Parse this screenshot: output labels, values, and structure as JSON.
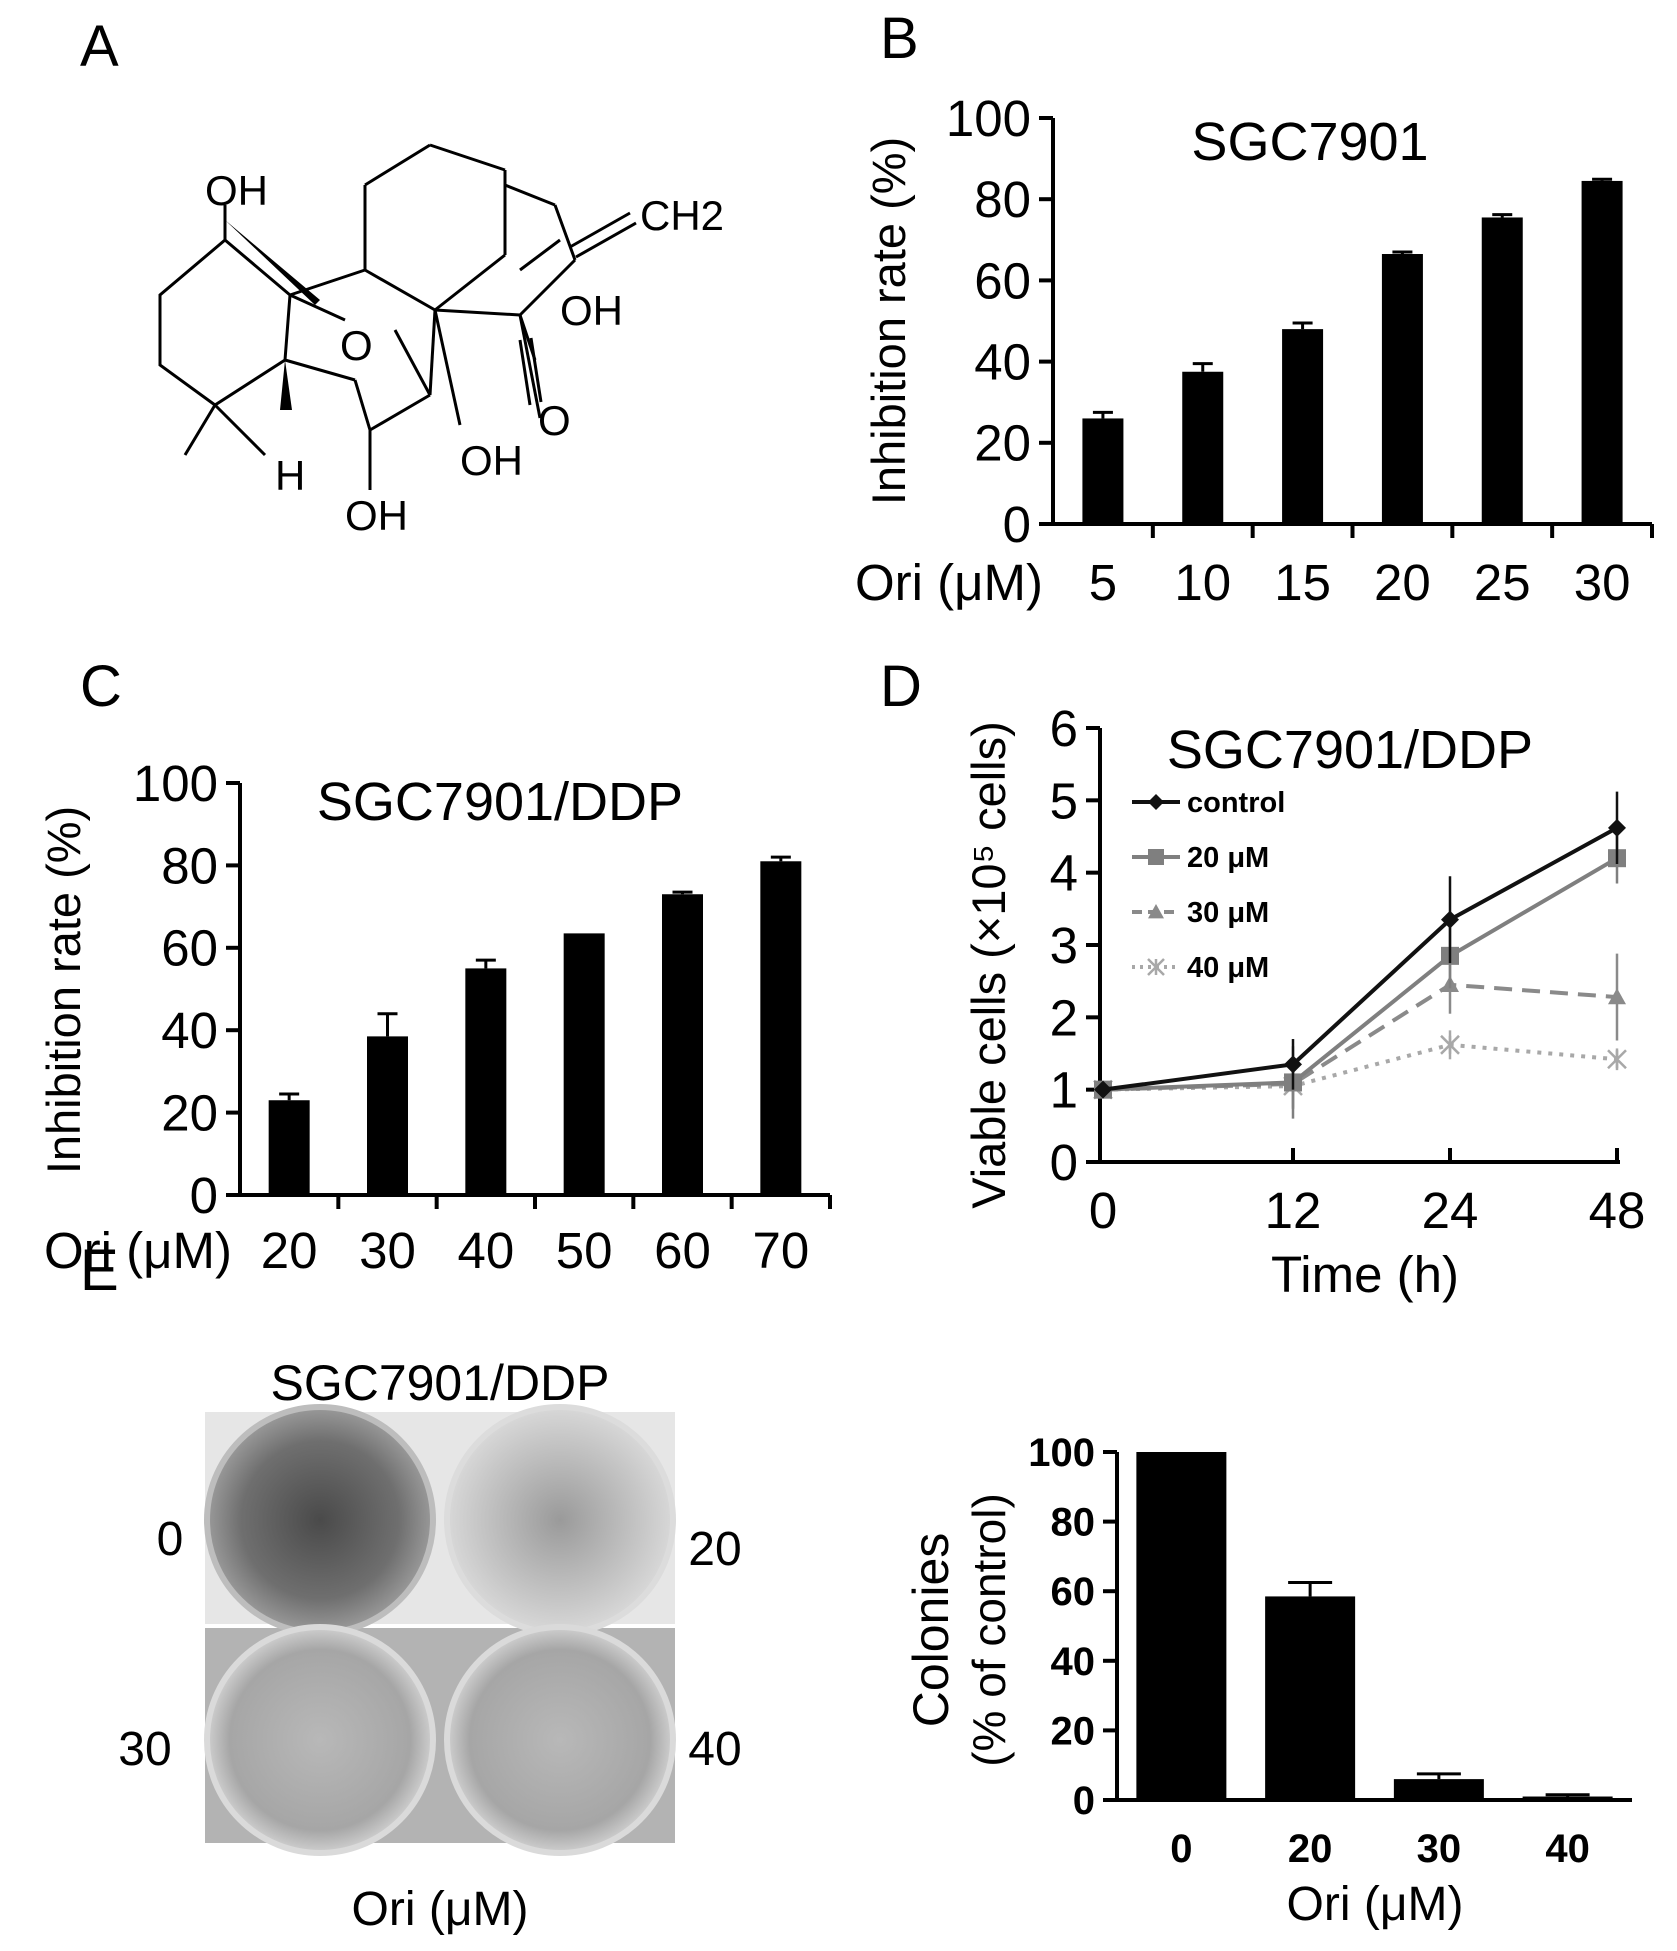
{
  "panels": {
    "a": {
      "label": "A"
    },
    "b": {
      "label": "B"
    },
    "c": {
      "label": "C"
    },
    "d": {
      "label": "D"
    },
    "e": {
      "label": "E"
    }
  },
  "structure": {
    "labels": [
      "OH",
      "CH2",
      "OH",
      "O",
      "O",
      "H",
      "OH",
      "OH"
    ]
  },
  "plate": {
    "title": "SGC7901/DDP",
    "wells": [
      "0",
      "20",
      "30",
      "40"
    ],
    "xlabel": "Ori (μM)"
  },
  "chart_data": [
    {
      "type": "bar",
      "title": "SGC7901",
      "ylabel": "Inhibition rate (%)",
      "xlabel": "Ori (μM)",
      "categories": [
        "5",
        "10",
        "15",
        "20",
        "25",
        "30"
      ],
      "values": [
        26,
        37.5,
        48,
        66.5,
        75.5,
        84.5
      ],
      "errors": [
        1.5,
        2,
        1.5,
        0.5,
        0.7,
        0.4
      ],
      "ylim": [
        0,
        100
      ],
      "yticks": [
        "0",
        "20",
        "40",
        "60",
        "80",
        "100"
      ],
      "bar_color": "#000000"
    },
    {
      "type": "bar",
      "title": "SGC7901/DDP",
      "ylabel": "Inhibition rate (%)",
      "xlabel": "Ori (μM)",
      "categories": [
        "20",
        "30",
        "40",
        "50",
        "60",
        "70"
      ],
      "values": [
        23,
        38.5,
        55,
        63.5,
        73,
        81
      ],
      "errors": [
        1.5,
        5.5,
        2,
        0,
        0.5,
        1
      ],
      "ylim": [
        0,
        100
      ],
      "yticks": [
        "0",
        "20",
        "40",
        "60",
        "80",
        "100"
      ],
      "bar_color": "#000000"
    },
    {
      "type": "line",
      "title": "SGC7901/DDP",
      "ylabel": "Viable cells (×10⁵ cells)",
      "xlabel": "Time (h)",
      "x": [
        "0",
        "12",
        "24",
        "48"
      ],
      "ylim": [
        0,
        6
      ],
      "yticks": [
        "0",
        "1",
        "2",
        "3",
        "4",
        "5",
        "6"
      ],
      "legend_position": "top-left",
      "series": [
        {
          "name": "control",
          "values": [
            1,
            1.35,
            3.35,
            4.62
          ],
          "errors": [
            0,
            0.35,
            0.6,
            0.5
          ],
          "color": "#111111",
          "marker": "diamond",
          "dash": ""
        },
        {
          "name": "20 μM",
          "values": [
            1,
            1.1,
            2.85,
            4.2
          ],
          "errors": [
            0,
            0.5,
            0.45,
            0.35
          ],
          "color": "#7f7f7f",
          "marker": "square",
          "dash": ""
        },
        {
          "name": "30 μM",
          "values": [
            1,
            1.08,
            2.45,
            2.28
          ],
          "errors": [
            0,
            0.35,
            0.4,
            0.6
          ],
          "color": "#8a8a8a",
          "marker": "triangle",
          "dash": "18,10"
        },
        {
          "name": "40 μM",
          "values": [
            1,
            1.05,
            1.62,
            1.42
          ],
          "errors": [
            0,
            0.3,
            0.2,
            0.15
          ],
          "color": "#a8a8a8",
          "marker": "star",
          "dash": "4,7"
        }
      ]
    },
    {
      "type": "bar",
      "title": "",
      "ylabel": "Colonies (% of control)",
      "xlabel": "Ori (μM)",
      "categories": [
        "0",
        "20",
        "30",
        "40"
      ],
      "values": [
        100,
        58.5,
        6,
        1
      ],
      "errors": [
        0,
        4,
        1.5,
        0.5
      ],
      "ylim": [
        0,
        100
      ],
      "yticks": [
        "0",
        "20",
        "40",
        "60",
        "80",
        "100"
      ],
      "bar_color": "#000000"
    }
  ]
}
